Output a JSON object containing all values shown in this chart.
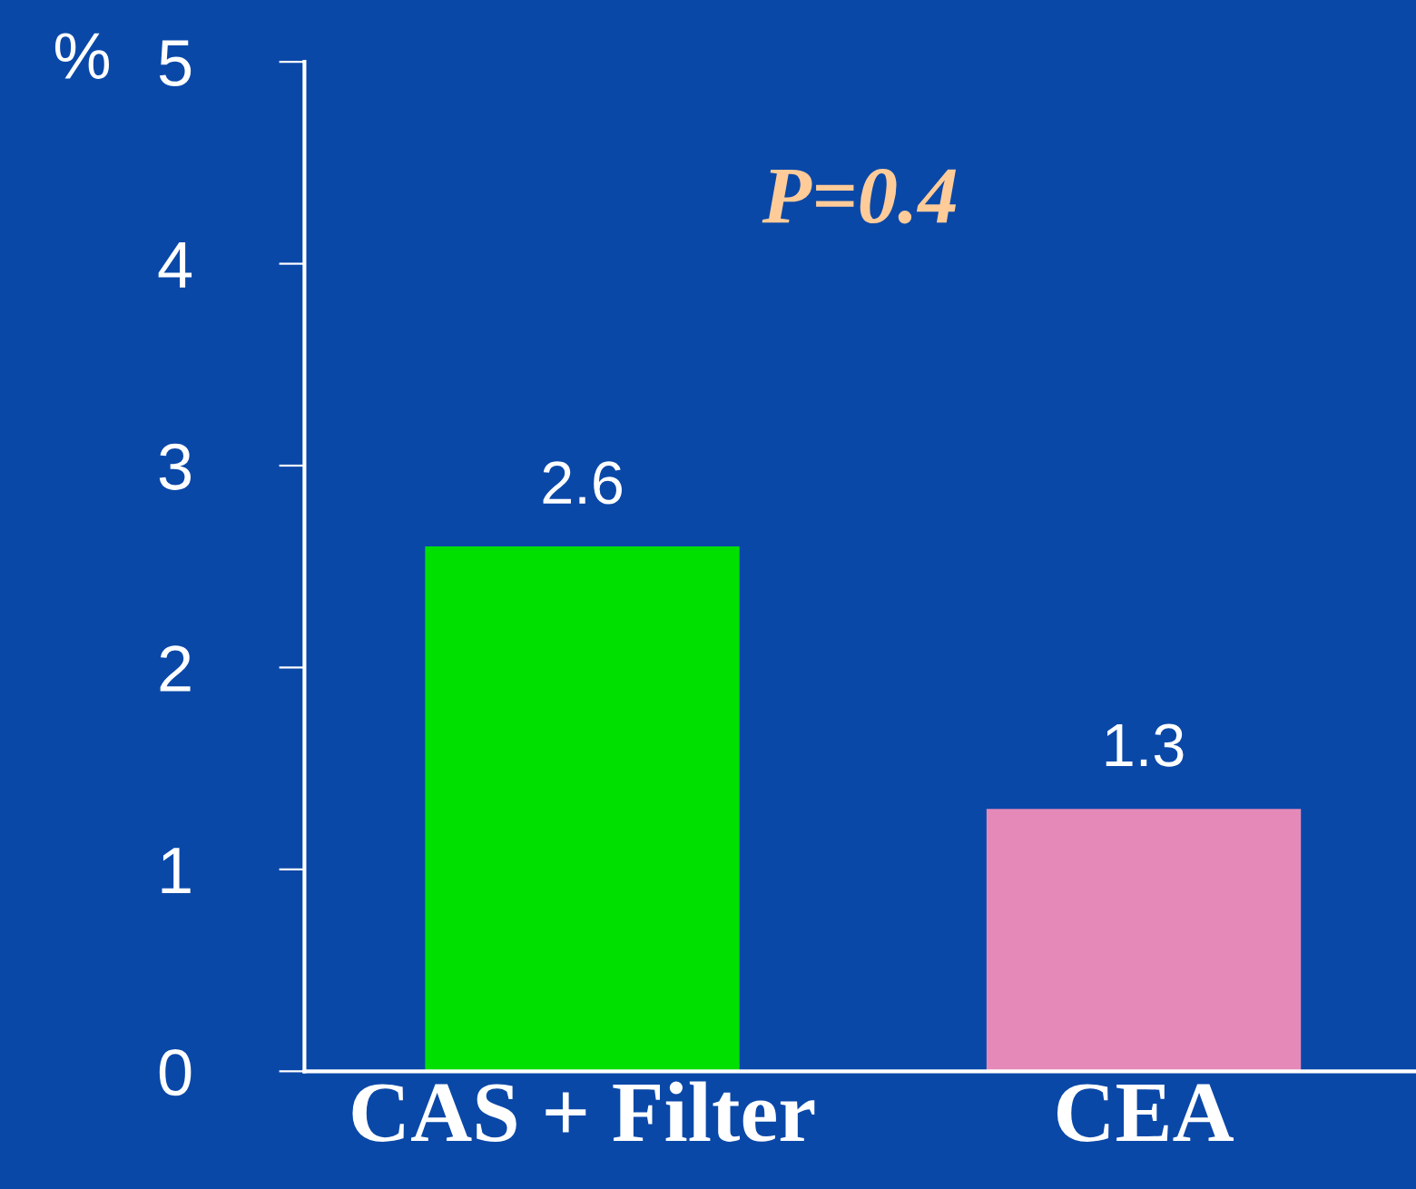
{
  "chart_data": {
    "type": "bar",
    "ylabel": "%",
    "categories": [
      "CAS + Filter",
      "CEA"
    ],
    "values": [
      2.6,
      1.3
    ],
    "colors": [
      "#00e000",
      "#e58ab8"
    ],
    "ylim": [
      0,
      5
    ],
    "yticks": [
      0,
      1,
      2,
      3,
      4,
      5
    ],
    "data_labels": true,
    "grid": false,
    "legend": false,
    "annotations": [
      "P=0.4"
    ]
  }
}
